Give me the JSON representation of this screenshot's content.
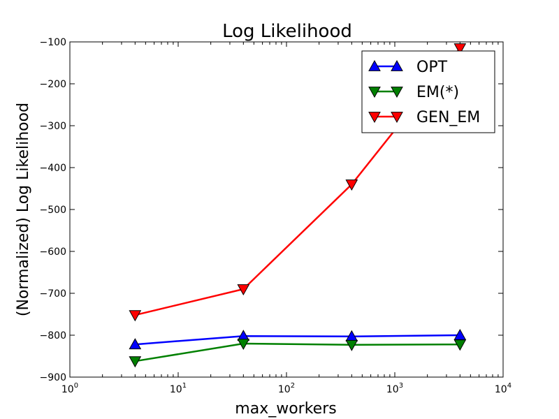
{
  "chart_data": {
    "type": "line",
    "title": "Log Likelihood",
    "xlabel": "max_workers",
    "ylabel": "(Normalized) Log Likelihood",
    "xscale": "log",
    "xlim": [
      1,
      10000
    ],
    "ylim": [
      -900,
      -100
    ],
    "x": [
      4,
      40,
      400,
      4000
    ],
    "x_tick_labels": [
      {
        "value": 1,
        "base": "10",
        "exp": "0"
      },
      {
        "value": 10,
        "base": "10",
        "exp": "1"
      },
      {
        "value": 100,
        "base": "10",
        "exp": "2"
      },
      {
        "value": 1000,
        "base": "10",
        "exp": "3"
      },
      {
        "value": 10000,
        "base": "10",
        "exp": "4"
      }
    ],
    "y_ticks": [
      -900,
      -800,
      -700,
      -600,
      -500,
      -400,
      -300,
      -200,
      -100
    ],
    "y_tick_labels": [
      "−900",
      "−800",
      "−700",
      "−600",
      "−500",
      "−400",
      "−300",
      "−200",
      "−100"
    ],
    "grid": false,
    "legend_position": "top-right",
    "series": [
      {
        "name": "OPT",
        "values": [
          -822,
          -802,
          -803,
          -800
        ],
        "color": "#0000ff",
        "marker": "triangle-up"
      },
      {
        "name": "EM(*)",
        "values": [
          -862,
          -820,
          -823,
          -822
        ],
        "color": "#008000",
        "marker": "triangle-down"
      },
      {
        "name": "GEN_EM",
        "values": [
          -752,
          -690,
          -440,
          -115
        ],
        "color": "#ff0000",
        "marker": "triangle-down"
      }
    ]
  }
}
